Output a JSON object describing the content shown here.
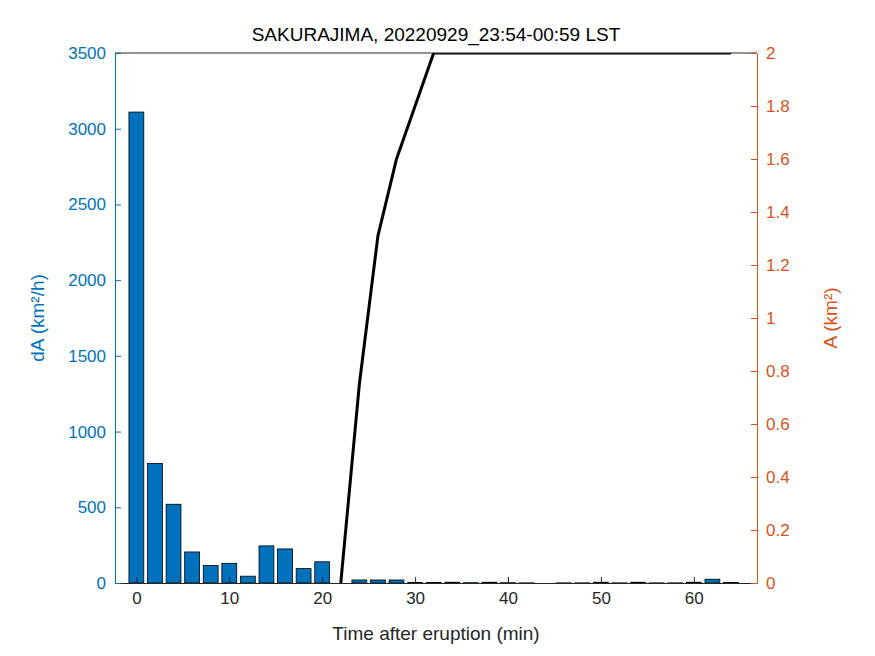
{
  "chart_data": {
    "type": "bar",
    "title": "SAKURAJIMA, 20220929_23:54-00:59 LST",
    "x_label": "Time after eruption (min)",
    "y_label": "dA (km²/h)",
    "y2_label": "A (km²)",
    "x": [
      0,
      2,
      4,
      6,
      8,
      10,
      12,
      14,
      16,
      18,
      20,
      22,
      24,
      26,
      28,
      30,
      32,
      34,
      36,
      38,
      40,
      42,
      44,
      46,
      48,
      50,
      52,
      54,
      56,
      58,
      60,
      62,
      64
    ],
    "series": [
      {
        "type": "bar",
        "color": "#0072bd",
        "values": [
          3110,
          790,
          520,
          205,
          115,
          130,
          45,
          245,
          225,
          95,
          140,
          0,
          20,
          20,
          20,
          3,
          3,
          5,
          2,
          5,
          2,
          1,
          0,
          1,
          1,
          5,
          1,
          5,
          1,
          1,
          5,
          25,
          3
        ]
      },
      {
        "type": "line",
        "axis": "y2",
        "color": "#000000",
        "values": [
          null,
          null,
          null,
          null,
          null,
          null,
          null,
          null,
          null,
          null,
          null,
          0,
          0.75,
          1.31,
          1.6,
          1.8,
          2,
          2,
          2,
          2,
          2,
          2,
          2,
          2,
          2,
          2,
          2,
          2,
          2,
          2,
          2,
          2,
          2
        ]
      }
    ],
    "xlim": [
      -2.3,
      66.8
    ],
    "xticks": [
      0,
      10,
      20,
      30,
      40,
      50,
      60
    ],
    "ylim": [
      0,
      3500
    ],
    "yticks": [
      0,
      500,
      1000,
      1500,
      2000,
      2500,
      3000,
      3500
    ],
    "y2lim": [
      0,
      2
    ],
    "y2ticks": [
      0,
      0.2,
      0.4,
      0.6,
      0.8,
      1,
      1.2,
      1.4,
      1.6,
      1.8,
      2
    ]
  }
}
